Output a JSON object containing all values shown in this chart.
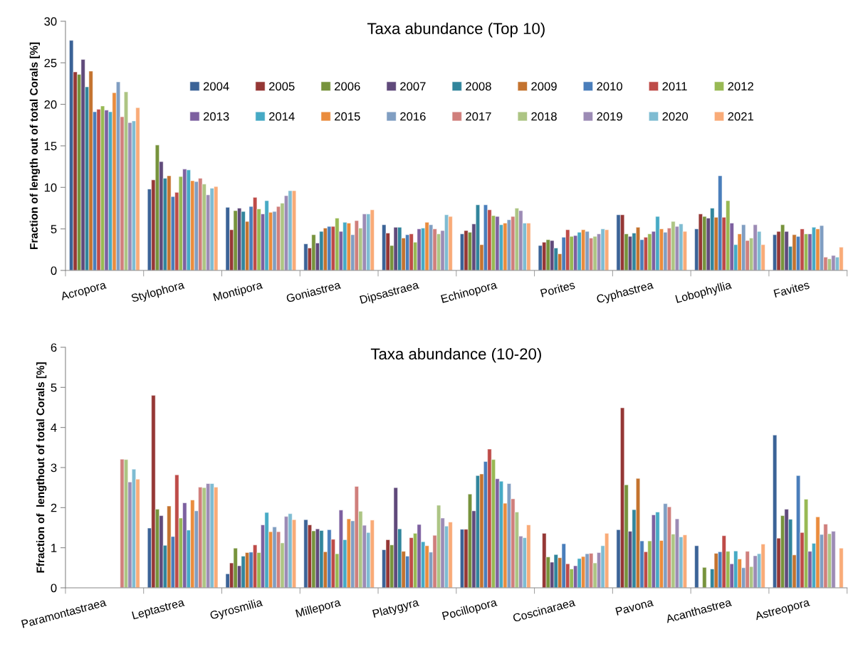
{
  "chart_data": [
    {
      "type": "bar",
      "title": "Taxa abundance (Top 10)",
      "ylabel": "Fraction of length out of total Corals [%]",
      "categories": [
        "Acropora",
        "Stylophora",
        "Montipora",
        "Goniastrea",
        "Dipsastraea",
        "Echinopora",
        "Porites",
        "Cyphastrea",
        "Lobophyllia",
        "Favites"
      ],
      "ylim": [
        0,
        30
      ],
      "yticks": [
        0,
        5,
        10,
        15,
        20,
        25,
        30
      ],
      "legend": "top",
      "series": [
        {
          "name": "2004",
          "color": "#3b6397",
          "values": [
            27.7,
            9.8,
            7.6,
            3.2,
            5.5,
            4.4,
            3.0,
            6.7,
            5.0,
            4.3
          ]
        },
        {
          "name": "2005",
          "color": "#953735",
          "values": [
            23.9,
            10.9,
            4.9,
            2.7,
            4.5,
            4.8,
            3.4,
            6.7,
            6.8,
            4.7
          ]
        },
        {
          "name": "2006",
          "color": "#77933c",
          "values": [
            23.6,
            15.1,
            7.2,
            4.3,
            3.0,
            4.6,
            3.7,
            4.4,
            6.5,
            5.5
          ]
        },
        {
          "name": "2007",
          "color": "#604a7b",
          "values": [
            25.4,
            13.1,
            7.5,
            3.3,
            5.2,
            5.6,
            3.6,
            4.1,
            6.3,
            4.7
          ]
        },
        {
          "name": "2008",
          "color": "#31859c",
          "values": [
            22.1,
            11.1,
            7.1,
            4.7,
            5.2,
            7.9,
            2.7,
            4.5,
            7.5,
            2.9
          ]
        },
        {
          "name": "2009",
          "color": "#c4732f",
          "values": [
            24.0,
            11.4,
            5.9,
            5.1,
            3.9,
            3.1,
            2.0,
            5.2,
            6.4,
            4.3
          ]
        },
        {
          "name": "2010",
          "color": "#4a7ebb",
          "values": [
            19.1,
            8.9,
            7.7,
            5.3,
            4.3,
            7.9,
            4.0,
            3.7,
            11.4,
            4.1
          ]
        },
        {
          "name": "2011",
          "color": "#be4b48",
          "values": [
            19.4,
            9.4,
            8.8,
            5.3,
            4.4,
            7.3,
            4.9,
            4.0,
            6.4,
            5.0
          ]
        },
        {
          "name": "2012",
          "color": "#98b954",
          "values": [
            19.8,
            11.3,
            7.4,
            6.3,
            3.4,
            6.6,
            4.1,
            4.4,
            8.4,
            4.4
          ]
        },
        {
          "name": "2013",
          "color": "#7d60a0",
          "values": [
            19.3,
            12.2,
            6.8,
            4.7,
            5.0,
            6.5,
            4.2,
            4.7,
            5.7,
            4.4
          ]
        },
        {
          "name": "2014",
          "color": "#46aac5",
          "values": [
            19.1,
            12.1,
            8.4,
            5.8,
            5.1,
            5.5,
            4.6,
            6.5,
            3.1,
            5.2
          ]
        },
        {
          "name": "2015",
          "color": "#ea8c3d",
          "values": [
            21.4,
            10.8,
            7.0,
            5.7,
            5.8,
            5.7,
            4.9,
            5.0,
            4.4,
            5.0
          ]
        },
        {
          "name": "2016",
          "color": "#809ec2",
          "values": [
            22.7,
            10.7,
            7.1,
            4.3,
            5.5,
            6.1,
            4.7,
            4.6,
            5.5,
            5.4
          ]
        },
        {
          "name": "2017",
          "color": "#d07f7c",
          "values": [
            18.5,
            11.1,
            7.7,
            6.0,
            5.0,
            6.5,
            3.9,
            5.1,
            3.6,
            1.6
          ]
        },
        {
          "name": "2018",
          "color": "#adc584",
          "values": [
            21.5,
            10.4,
            8.1,
            5.1,
            4.4,
            7.5,
            4.1,
            5.9,
            3.9,
            1.4
          ]
        },
        {
          "name": "2019",
          "color": "#9c8bb5",
          "values": [
            17.8,
            9.1,
            9.0,
            6.8,
            4.8,
            7.2,
            4.4,
            5.3,
            5.5,
            1.8
          ]
        },
        {
          "name": "2020",
          "color": "#7fbcd2",
          "values": [
            18.0,
            9.9,
            9.6,
            6.8,
            6.7,
            5.7,
            5.0,
            5.6,
            4.7,
            1.6
          ]
        },
        {
          "name": "2021",
          "color": "#f9ab78",
          "values": [
            19.6,
            10.1,
            9.6,
            7.3,
            6.5,
            5.7,
            4.9,
            4.7,
            3.1,
            2.8
          ]
        }
      ]
    },
    {
      "type": "bar",
      "title": "Taxa abundance (10-20)",
      "ylabel": "Ffraction of  lengthout of total Corals [%]",
      "categories": [
        "Paramontastraea",
        "Leptastrea",
        "Gyrosmilia",
        "Millepora",
        "Platygyra",
        "Pocillopora",
        "Coscinaraea",
        "Pavona",
        "Acanthastrea",
        "Astreopora"
      ],
      "ylim": [
        0,
        6
      ],
      "yticks": [
        0,
        1,
        2,
        3,
        4,
        5,
        6
      ],
      "series": [
        {
          "color": "#3b6397",
          "values": [
            null,
            1.49,
            0.35,
            1.7,
            0.95,
            1.46,
            null,
            1.45,
            1.05,
            3.81
          ]
        },
        {
          "color": "#953735",
          "values": [
            null,
            4.8,
            0.62,
            1.57,
            1.2,
            1.46,
            1.36,
            4.49,
            null,
            1.24
          ]
        },
        {
          "color": "#77933c",
          "values": [
            null,
            1.96,
            0.99,
            1.42,
            1.07,
            2.34,
            0.77,
            2.57,
            0.51,
            1.8
          ]
        },
        {
          "color": "#604a7b",
          "values": [
            null,
            1.8,
            0.55,
            1.47,
            2.5,
            1.92,
            0.64,
            1.41,
            null,
            1.96
          ]
        },
        {
          "color": "#31859c",
          "values": [
            null,
            1.06,
            0.79,
            1.43,
            1.47,
            2.8,
            0.83,
            1.95,
            0.47,
            1.71
          ]
        },
        {
          "color": "#c4732f",
          "values": [
            null,
            2.04,
            0.88,
            0.9,
            0.91,
            2.84,
            0.75,
            2.73,
            0.86,
            0.82
          ]
        },
        {
          "color": "#4a7ebb",
          "values": [
            null,
            1.28,
            0.89,
            1.45,
            0.79,
            3.15,
            1.1,
            1.17,
            0.9,
            2.8
          ]
        },
        {
          "color": "#be4b48",
          "values": [
            null,
            2.82,
            1.07,
            1.21,
            1.25,
            3.46,
            0.6,
            0.9,
            1.3,
            1.38
          ]
        },
        {
          "color": "#98b954",
          "values": [
            null,
            1.74,
            0.88,
            0.85,
            1.36,
            3.2,
            0.47,
            1.17,
            0.91,
            2.21
          ]
        },
        {
          "color": "#7d60a0",
          "values": [
            null,
            2.12,
            1.57,
            1.94,
            1.58,
            2.72,
            0.55,
            1.82,
            0.6,
            0.91
          ]
        },
        {
          "color": "#46aac5",
          "values": [
            null,
            1.44,
            1.88,
            1.2,
            1.15,
            2.66,
            0.73,
            1.89,
            0.92,
            1.11
          ]
        },
        {
          "color": "#ea8c3d",
          "values": [
            null,
            2.19,
            1.4,
            1.72,
            1.05,
            2.11,
            0.78,
            1.18,
            0.72,
            1.77
          ]
        },
        {
          "color": "#809ec2",
          "values": [
            null,
            1.92,
            1.52,
            1.67,
            0.89,
            2.6,
            0.85,
            2.1,
            0.5,
            1.33
          ]
        },
        {
          "color": "#d07f7c",
          "values": [
            3.21,
            2.51,
            1.4,
            2.53,
            1.31,
            2.22,
            0.86,
            2.02,
            0.91,
            1.59
          ]
        },
        {
          "color": "#adc584",
          "values": [
            3.2,
            2.5,
            1.12,
            1.91,
            2.06,
            1.89,
            0.62,
            1.34,
            0.53,
            1.35
          ]
        },
        {
          "color": "#9c8bb5",
          "values": [
            2.64,
            2.6,
            1.78,
            1.56,
            1.74,
            1.29,
            0.88,
            1.72,
            0.8,
            1.41
          ]
        },
        {
          "color": "#7fbcd2",
          "values": [
            2.96,
            2.6,
            1.85,
            1.38,
            1.54,
            1.25,
            1.05,
            1.27,
            0.85,
            null
          ]
        },
        {
          "color": "#f9ab78",
          "values": [
            2.71,
            2.51,
            1.7,
            1.69,
            1.64,
            1.57,
            1.36,
            1.32,
            1.09,
            0.99
          ]
        }
      ]
    }
  ]
}
